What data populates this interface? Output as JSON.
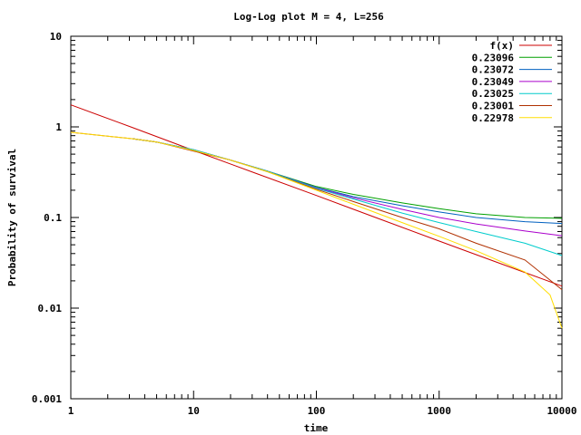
{
  "chart_data": {
    "type": "line",
    "title": "Log-Log plot M = 4, L=256",
    "xlabel": "time",
    "ylabel": "Probability of survival",
    "xscale": "log",
    "yscale": "log",
    "xlim": [
      1,
      10000
    ],
    "ylim": [
      0.001,
      10
    ],
    "grid": false,
    "legend_position": "top-right",
    "x_ticks": [
      1,
      10,
      100,
      1000,
      10000
    ],
    "x_tick_labels": [
      "1",
      "10",
      "100",
      "1000",
      "10000"
    ],
    "y_ticks": [
      0.001,
      0.01,
      0.1,
      1,
      10
    ],
    "y_tick_labels": [
      "0.001",
      "0.01",
      "0.1",
      "1",
      "10"
    ],
    "series": [
      {
        "name": "f(x)",
        "color": "#cc0000",
        "x": [
          1,
          3.2,
          10,
          31.6,
          100,
          316,
          1000,
          3162,
          10000
        ],
        "y": [
          1.75,
          0.98,
          0.55,
          0.31,
          0.175,
          0.098,
          0.055,
          0.031,
          0.0175
        ]
      },
      {
        "name": "0.23096",
        "color": "#00a000",
        "x": [
          3.2,
          5,
          10,
          20,
          40,
          100,
          200,
          500,
          1000,
          2000,
          5000,
          10000
        ],
        "y": [
          0.74,
          0.68,
          0.56,
          0.43,
          0.325,
          0.22,
          0.18,
          0.145,
          0.125,
          0.11,
          0.1,
          0.098
        ]
      },
      {
        "name": "0.23072",
        "color": "#0060c0",
        "x": [
          3.2,
          5,
          10,
          20,
          40,
          100,
          200,
          500,
          1000,
          2000,
          5000,
          10000
        ],
        "y": [
          0.74,
          0.68,
          0.56,
          0.43,
          0.325,
          0.215,
          0.17,
          0.135,
          0.115,
          0.1,
          0.09,
          0.086
        ]
      },
      {
        "name": "0.23049",
        "color": "#aa00cc",
        "x": [
          3.2,
          5,
          10,
          20,
          40,
          100,
          200,
          500,
          1000,
          2000,
          5000,
          10000
        ],
        "y": [
          0.74,
          0.68,
          0.56,
          0.43,
          0.325,
          0.212,
          0.165,
          0.123,
          0.1,
          0.085,
          0.071,
          0.063
        ]
      },
      {
        "name": "0.23025",
        "color": "#00cccc",
        "x": [
          3.2,
          5,
          10,
          20,
          40,
          100,
          200,
          500,
          1000,
          2000,
          5000,
          10000
        ],
        "y": [
          0.74,
          0.68,
          0.56,
          0.43,
          0.325,
          0.21,
          0.16,
          0.112,
          0.088,
          0.07,
          0.052,
          0.038
        ]
      },
      {
        "name": "0.23001",
        "color": "#b03000",
        "x": [
          1,
          3.2,
          5,
          10,
          20,
          40,
          100,
          200,
          500,
          1000,
          2000,
          5000,
          10000
        ],
        "y": [
          0.87,
          0.74,
          0.68,
          0.54,
          0.43,
          0.32,
          0.205,
          0.15,
          0.1,
          0.075,
          0.052,
          0.034,
          0.016
        ]
      },
      {
        "name": "0.22978",
        "color": "#ffdd00",
        "x": [
          1,
          3.2,
          5,
          10,
          20,
          40,
          100,
          200,
          500,
          1000,
          2000,
          5000,
          8000,
          10000
        ],
        "y": [
          0.87,
          0.74,
          0.68,
          0.55,
          0.43,
          0.32,
          0.2,
          0.14,
          0.088,
          0.062,
          0.043,
          0.025,
          0.014,
          0.006
        ]
      }
    ]
  }
}
